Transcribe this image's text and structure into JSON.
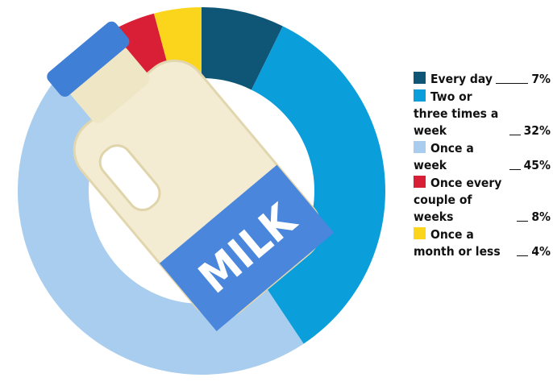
{
  "chart_data": {
    "type": "donut",
    "categories": [
      "Every day",
      "Two or three times a week",
      "Once a week",
      "Once every couple of weeks",
      "Once a month or less"
    ],
    "values": [
      7,
      32,
      45,
      8,
      4
    ],
    "value_labels": [
      "7%",
      "32%",
      "45%",
      "8%",
      "4%"
    ],
    "colors": [
      "#0f5676",
      "#0a9edb",
      "#a8cdef",
      "#d91f36",
      "#fbd51b"
    ],
    "image_label": "MILK"
  }
}
